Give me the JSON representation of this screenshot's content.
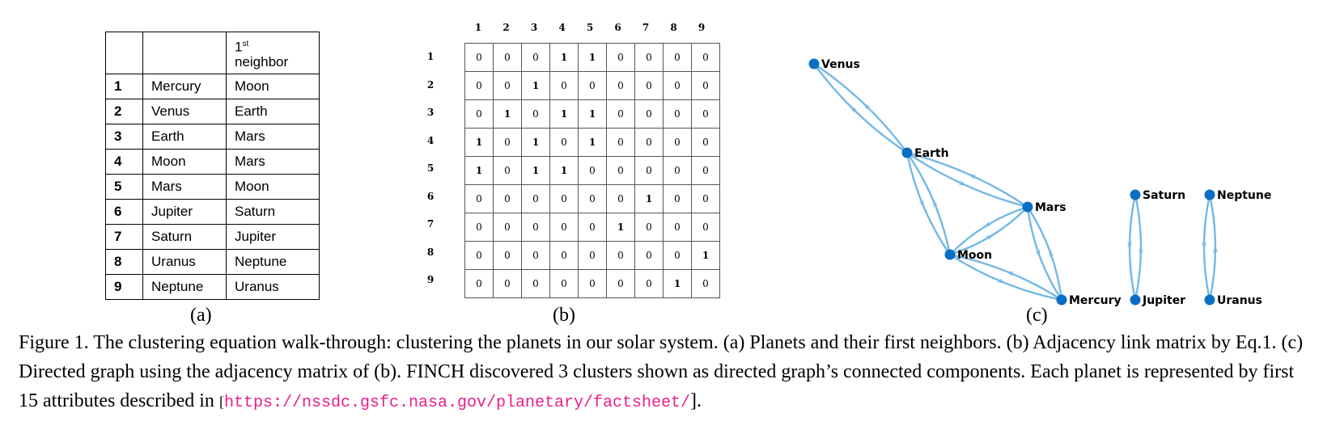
{
  "table": {
    "header": {
      "col1": "",
      "col2": "",
      "nb_sup": "st",
      "nb_top": "1",
      "nb_word": "neighbor"
    },
    "rows": [
      {
        "idx": "1",
        "name": "Mercury",
        "nb": "Moon"
      },
      {
        "idx": "2",
        "name": "Venus",
        "nb": "Earth"
      },
      {
        "idx": "3",
        "name": "Earth",
        "nb": "Mars"
      },
      {
        "idx": "4",
        "name": "Moon",
        "nb": "Mars"
      },
      {
        "idx": "5",
        "name": "Mars",
        "nb": "Moon"
      },
      {
        "idx": "6",
        "name": "Jupiter",
        "nb": "Saturn"
      },
      {
        "idx": "7",
        "name": "Saturn",
        "nb": "Jupiter"
      },
      {
        "idx": "8",
        "name": "Uranus",
        "nb": "Neptune"
      },
      {
        "idx": "9",
        "name": "Neptune",
        "nb": "Uranus"
      }
    ]
  },
  "sublabels": {
    "a": "(a)",
    "b": "(b)",
    "c": "(c)"
  },
  "matrix": {
    "headers": [
      "1",
      "2",
      "3",
      "4",
      "5",
      "6",
      "7",
      "8",
      "9"
    ],
    "rows": [
      [
        0,
        0,
        0,
        1,
        1,
        0,
        0,
        0,
        0
      ],
      [
        0,
        0,
        1,
        0,
        0,
        0,
        0,
        0,
        0
      ],
      [
        0,
        1,
        0,
        1,
        1,
        0,
        0,
        0,
        0
      ],
      [
        1,
        0,
        1,
        0,
        1,
        0,
        0,
        0,
        0
      ],
      [
        1,
        0,
        1,
        1,
        0,
        0,
        0,
        0,
        0
      ],
      [
        0,
        0,
        0,
        0,
        0,
        0,
        1,
        0,
        0
      ],
      [
        0,
        0,
        0,
        0,
        0,
        1,
        0,
        0,
        0
      ],
      [
        0,
        0,
        0,
        0,
        0,
        0,
        0,
        0,
        1
      ],
      [
        0,
        0,
        0,
        0,
        0,
        0,
        0,
        1,
        0
      ]
    ]
  },
  "graph": {
    "node_color": "#0a6fc2",
    "edge_color": "#74b8e6",
    "nodes": [
      "Venus",
      "Earth",
      "Mars",
      "Moon",
      "Mercury",
      "Saturn",
      "Jupiter",
      "Neptune",
      "Uranus"
    ],
    "edges": [
      [
        "Venus",
        "Earth"
      ],
      [
        "Earth",
        "Mars"
      ],
      [
        "Earth",
        "Moon"
      ],
      [
        "Moon",
        "Mars"
      ],
      [
        "Moon",
        "Mercury"
      ],
      [
        "Mars",
        "Mercury"
      ],
      [
        "Saturn",
        "Jupiter"
      ],
      [
        "Neptune",
        "Uranus"
      ]
    ]
  },
  "caption": {
    "text": "Figure 1. The clustering equation walk-through: clustering the planets in our solar system. (a) Planets and their first neighbors. (b) Adjacency link matrix by Eq.1. (c) Directed graph using the adjacency matrix of (b). FINCH discovered 3 clusters shown as directed graph’s connected components. Each planet is represented by first 15 attributes described in ",
    "url_open": "[",
    "url": "https://nssdc.gsfc.nasa.gov/planetary/factsheet/",
    "url_close": "]."
  }
}
